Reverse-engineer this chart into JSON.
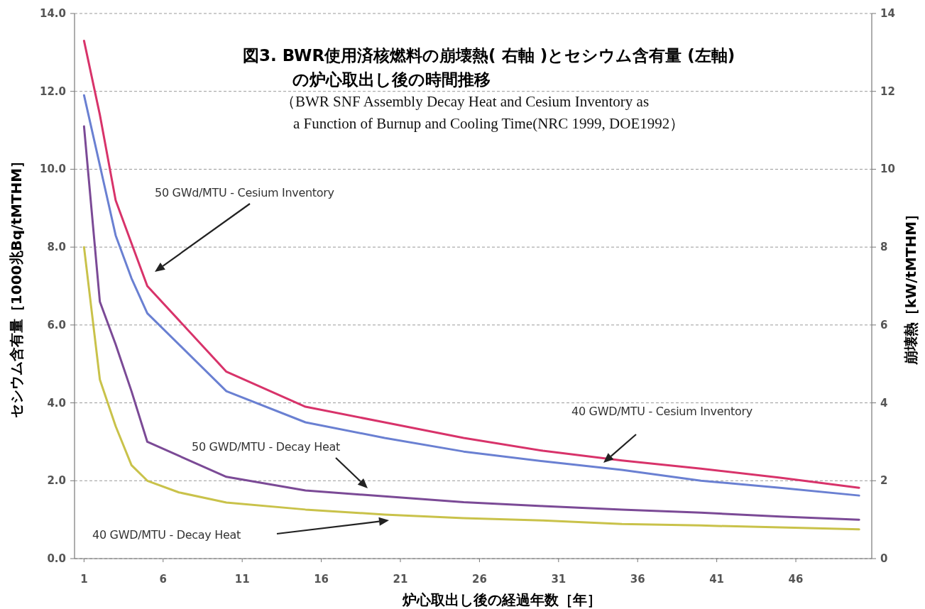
{
  "chart_data": {
    "type": "line",
    "title": "図3. BWR使用済核燃料の崩壊熱( 右軸 )とセシウム含有量 (左軸)\nの炉心取出し後の時間推移",
    "subtitle": "（BWR SNF Assembly Decay Heat and Cesium Inventory as\na Function of Burnup and Cooling Time(NRC 1999, DOE1992）",
    "xlabel": "炉心取出し後の経過年数［年］",
    "ylabel": "セシウム含有量［1000兆Bq/tMTHM］",
    "y2label": "崩壊熱［kW/tMTHM］",
    "xlim": [
      0.4,
      50.8
    ],
    "xticks": [
      1,
      6,
      11,
      16,
      21,
      26,
      31,
      36,
      41,
      46
    ],
    "ylim": [
      0,
      14
    ],
    "yticks": [
      {
        "value": 0,
        "label": "0.0"
      },
      {
        "value": 2,
        "label": "2.0"
      },
      {
        "value": 4,
        "label": "4.0"
      },
      {
        "value": 6,
        "label": "6.0"
      },
      {
        "value": 8,
        "label": "8.0"
      },
      {
        "value": 10,
        "label": "10.0"
      },
      {
        "value": 12,
        "label": "12.0"
      },
      {
        "value": 14,
        "label": "14.0"
      }
    ],
    "y2lim": [
      0,
      14
    ],
    "y2ticks": [
      0,
      2,
      4,
      6,
      8,
      10,
      12,
      14
    ],
    "grid": "y",
    "series": [
      {
        "color": "#d8336a",
        "x": [
          1,
          2,
          3,
          4,
          5,
          10,
          15,
          20,
          25,
          30,
          35,
          40,
          45,
          50
        ],
        "values": [
          13.3,
          11.4,
          9.2,
          8.1,
          7.0,
          4.8,
          3.9,
          3.5,
          3.1,
          2.77,
          2.52,
          2.31,
          2.08,
          1.82
        ]
      },
      {
        "color": "#6a80d2",
        "x": [
          1,
          2,
          3,
          4,
          5,
          10,
          15,
          20,
          25,
          30,
          35,
          40,
          45,
          50
        ],
        "values": [
          11.9,
          10.1,
          8.3,
          7.2,
          6.3,
          4.3,
          3.5,
          3.1,
          2.75,
          2.5,
          2.28,
          2.0,
          1.82,
          1.62
        ]
      },
      {
        "color": "#7b4a96",
        "x": [
          1,
          2,
          3,
          4,
          5,
          10,
          15,
          20,
          25,
          30,
          35,
          40,
          45,
          50
        ],
        "values": [
          11.1,
          6.6,
          5.5,
          4.3,
          3.0,
          2.1,
          1.75,
          1.6,
          1.45,
          1.35,
          1.26,
          1.18,
          1.08,
          1.0
        ]
      },
      {
        "color": "#c9c24a",
        "x": [
          1,
          2,
          3,
          4,
          5,
          7,
          10,
          15,
          20,
          25,
          30,
          35,
          40,
          45,
          50
        ],
        "values": [
          8.0,
          4.6,
          3.4,
          2.4,
          2.0,
          1.7,
          1.44,
          1.26,
          1.13,
          1.04,
          0.98,
          0.89,
          0.85,
          0.8,
          0.75
        ]
      }
    ],
    "annotations": [
      "50 GWd/MTU - Cesium Inventory",
      "40 GWD/MTU - Cesium Inventory",
      "50 GWD/MTU - Decay Heat",
      "40 GWD/MTU - Decay Heat"
    ]
  }
}
